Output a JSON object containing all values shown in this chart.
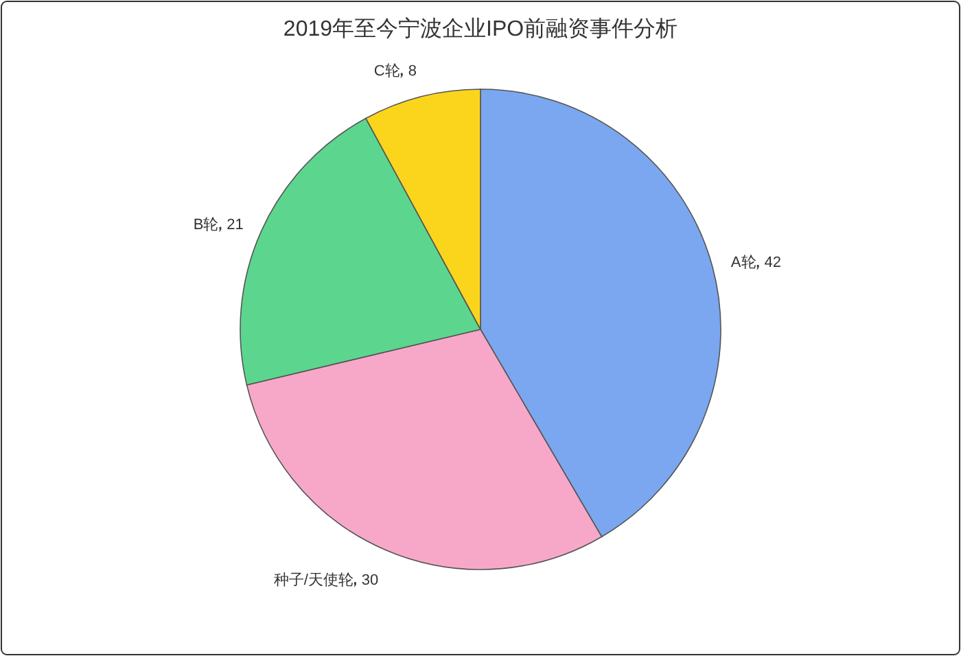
{
  "chart_data": {
    "type": "pie",
    "title": "2019年至今宁波企业IPO前融资事件分析",
    "categories": [
      "A轮",
      "种子/天使轮",
      "B轮",
      "C轮"
    ],
    "values": [
      42,
      30,
      21,
      8
    ],
    "colors": [
      "#7ba7f0",
      "#f7a8c8",
      "#5cd68f",
      "#fad51c"
    ],
    "data_labels": true
  }
}
